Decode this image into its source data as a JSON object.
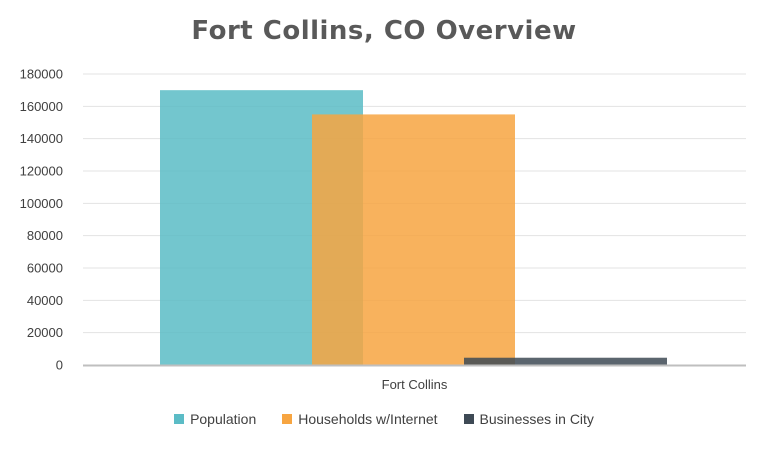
{
  "chart_data": {
    "type": "bar",
    "title": "Fort Collins, CO Overview",
    "categories": [
      "Fort Collins"
    ],
    "series": [
      {
        "name": "Population",
        "values": [
          170000
        ],
        "color": "#5bbcc6"
      },
      {
        "name": "Households w/Internet",
        "values": [
          155000
        ],
        "color": "#f7a541"
      },
      {
        "name": "Businesses in City",
        "values": [
          4500
        ],
        "color": "#3e4a55"
      }
    ],
    "ylim": [
      0,
      180000
    ],
    "yticks": [
      0,
      20000,
      40000,
      60000,
      80000,
      100000,
      120000,
      140000,
      160000,
      180000
    ],
    "grid": true,
    "legend_position": "bottom"
  }
}
